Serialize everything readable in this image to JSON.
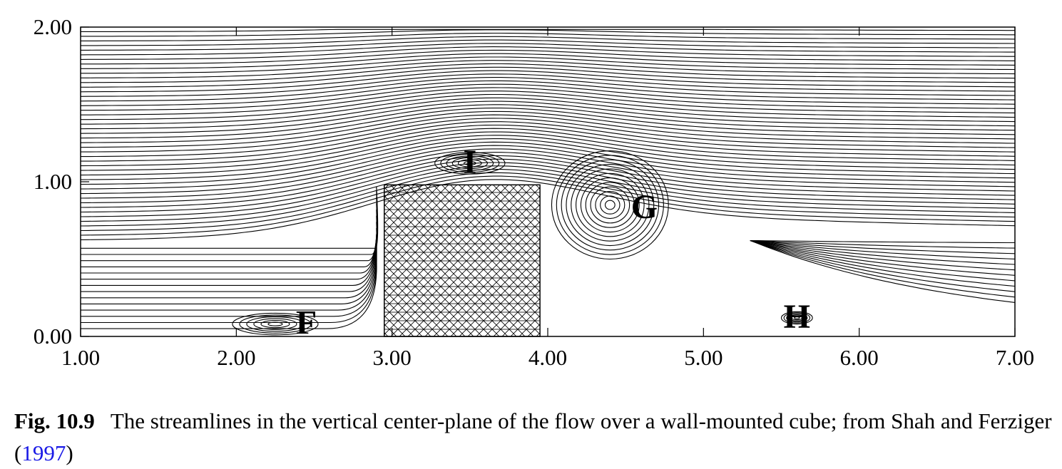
{
  "figure": {
    "chart_data": {
      "type": "streamline",
      "x_ticks": [
        "1.00",
        "2.00",
        "3.00",
        "4.00",
        "5.00",
        "6.00",
        "7.00"
      ],
      "y_ticks": [
        "0.00",
        "1.00",
        "2.00"
      ],
      "xlim": [
        1,
        7
      ],
      "ylim": [
        0,
        2
      ],
      "obstacle": {
        "x": [
          2.95,
          3.95
        ],
        "y": [
          0,
          0.98
        ],
        "fill": "hatched"
      },
      "vortices": [
        {
          "label": "F",
          "center": [
            2.25,
            0.08
          ]
        },
        {
          "label": "I",
          "center": [
            3.5,
            1.12
          ]
        },
        {
          "label": "G",
          "center": [
            4.4,
            0.85
          ]
        },
        {
          "label": "H",
          "center": [
            5.6,
            0.12
          ]
        }
      ],
      "line_color": "#000000"
    }
  },
  "caption": {
    "label": "Fig. 10.9",
    "text": "The streamlines in the vertical center-plane of the flow over a wall-mounted cube; from Shah and Ferziger (",
    "citation": "1997",
    "closing": ")"
  }
}
